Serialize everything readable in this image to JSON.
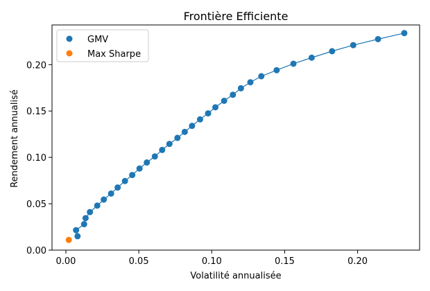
{
  "chart_data": {
    "type": "scatter",
    "title": "Frontière Efficiente",
    "xlabel": "Volatilité annualisée",
    "ylabel": "Rendement annualisé",
    "xlim": [
      -0.0095,
      0.2425
    ],
    "ylim": [
      0.0,
      0.2428
    ],
    "xticks": [
      0.0,
      0.05,
      0.1,
      0.15,
      0.2
    ],
    "xtick_labels": [
      "0.00",
      "0.05",
      "0.10",
      "0.15",
      "0.20"
    ],
    "yticks": [
      0.0,
      0.05,
      0.1,
      0.15,
      0.2
    ],
    "ytick_labels": [
      "0.00",
      "0.05",
      "0.10",
      "0.15",
      "0.20"
    ],
    "grid": false,
    "legend_position": "top-left",
    "series": [
      {
        "name": "GMV",
        "color": "#1f77b4",
        "style": "line+markers",
        "points": [
          [
            0.008,
            0.015
          ],
          [
            0.007,
            0.0215
          ],
          [
            0.0125,
            0.028
          ],
          [
            0.0135,
            0.0345
          ],
          [
            0.0165,
            0.041
          ],
          [
            0.0215,
            0.048
          ],
          [
            0.026,
            0.0545
          ],
          [
            0.031,
            0.061
          ],
          [
            0.0355,
            0.0675
          ],
          [
            0.0405,
            0.0745
          ],
          [
            0.0455,
            0.081
          ],
          [
            0.0505,
            0.088
          ],
          [
            0.0555,
            0.0945
          ],
          [
            0.061,
            0.101
          ],
          [
            0.066,
            0.108
          ],
          [
            0.071,
            0.1145
          ],
          [
            0.0765,
            0.121
          ],
          [
            0.0815,
            0.1275
          ],
          [
            0.0865,
            0.134
          ],
          [
            0.092,
            0.141
          ],
          [
            0.0975,
            0.1475
          ],
          [
            0.1025,
            0.154
          ],
          [
            0.1085,
            0.161
          ],
          [
            0.1145,
            0.1675
          ],
          [
            0.12,
            0.1745
          ],
          [
            0.1265,
            0.181
          ],
          [
            0.134,
            0.1875
          ],
          [
            0.1445,
            0.194
          ],
          [
            0.156,
            0.201
          ],
          [
            0.1685,
            0.2075
          ],
          [
            0.1825,
            0.2145
          ],
          [
            0.197,
            0.221
          ],
          [
            0.214,
            0.2275
          ],
          [
            0.232,
            0.234
          ]
        ]
      },
      {
        "name": "Max Sharpe",
        "color": "#ff7f0e",
        "style": "markers",
        "points": [
          [
            0.002,
            0.011
          ]
        ]
      }
    ]
  }
}
